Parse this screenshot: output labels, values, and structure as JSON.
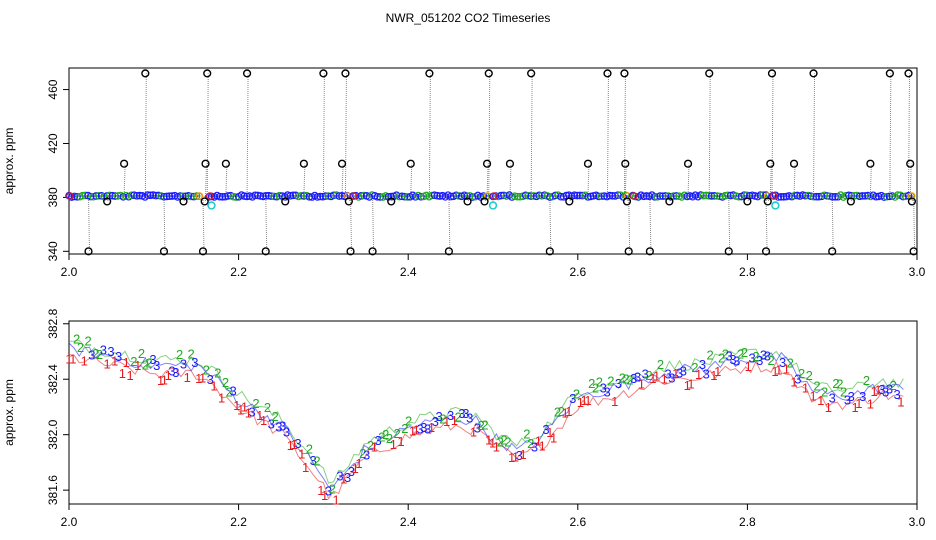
{
  "title": "NWR_051202  CO2 Timeseries",
  "chart_data": [
    {
      "type": "scatter",
      "ylabel": "approx. ppm",
      "xlim": [
        2.0,
        3.0
      ],
      "ylim": [
        338,
        476
      ],
      "xticks": [
        "2.0",
        "2.2",
        "2.4",
        "2.6",
        "2.8",
        "3.0"
      ],
      "yticks": [
        "340",
        "380",
        "420",
        "460"
      ],
      "baseline_ppm": 381,
      "segments": [
        [
          2.0,
          2.155
        ],
        [
          2.165,
          2.33
        ],
        [
          2.335,
          2.495
        ],
        [
          2.5,
          2.66
        ],
        [
          2.665,
          2.825
        ],
        [
          2.83,
          2.995
        ]
      ],
      "outliers": [
        {
          "x": 2.023,
          "y": 340
        },
        {
          "x": 2.045,
          "y": 377
        },
        {
          "x": 2.065,
          "y": 405
        },
        {
          "x": 2.09,
          "y": 472
        },
        {
          "x": 2.112,
          "y": 340
        },
        {
          "x": 2.135,
          "y": 377
        },
        {
          "x": 2.158,
          "y": 340
        },
        {
          "x": 2.16,
          "y": 377
        },
        {
          "x": 2.161,
          "y": 405
        },
        {
          "x": 2.163,
          "y": 472
        },
        {
          "x": 2.185,
          "y": 405
        },
        {
          "x": 2.21,
          "y": 472
        },
        {
          "x": 2.232,
          "y": 340
        },
        {
          "x": 2.255,
          "y": 377
        },
        {
          "x": 2.277,
          "y": 405
        },
        {
          "x": 2.3,
          "y": 472
        },
        {
          "x": 2.322,
          "y": 405
        },
        {
          "x": 2.326,
          "y": 472
        },
        {
          "x": 2.33,
          "y": 377
        },
        {
          "x": 2.332,
          "y": 340
        },
        {
          "x": 2.358,
          "y": 340
        },
        {
          "x": 2.38,
          "y": 377
        },
        {
          "x": 2.403,
          "y": 405
        },
        {
          "x": 2.425,
          "y": 472
        },
        {
          "x": 2.448,
          "y": 340
        },
        {
          "x": 2.47,
          "y": 377
        },
        {
          "x": 2.49,
          "y": 377
        },
        {
          "x": 2.493,
          "y": 405
        },
        {
          "x": 2.495,
          "y": 472
        },
        {
          "x": 2.52,
          "y": 405
        },
        {
          "x": 2.545,
          "y": 472
        },
        {
          "x": 2.567,
          "y": 340
        },
        {
          "x": 2.59,
          "y": 377
        },
        {
          "x": 2.612,
          "y": 405
        },
        {
          "x": 2.635,
          "y": 472
        },
        {
          "x": 2.655,
          "y": 472
        },
        {
          "x": 2.656,
          "y": 405
        },
        {
          "x": 2.658,
          "y": 377
        },
        {
          "x": 2.66,
          "y": 340
        },
        {
          "x": 2.685,
          "y": 340
        },
        {
          "x": 2.708,
          "y": 377
        },
        {
          "x": 2.73,
          "y": 405
        },
        {
          "x": 2.755,
          "y": 472
        },
        {
          "x": 2.778,
          "y": 340
        },
        {
          "x": 2.8,
          "y": 377
        },
        {
          "x": 2.822,
          "y": 340
        },
        {
          "x": 2.824,
          "y": 377
        },
        {
          "x": 2.827,
          "y": 405
        },
        {
          "x": 2.829,
          "y": 472
        },
        {
          "x": 2.855,
          "y": 405
        },
        {
          "x": 2.878,
          "y": 472
        },
        {
          "x": 2.9,
          "y": 340
        },
        {
          "x": 2.922,
          "y": 377
        },
        {
          "x": 2.945,
          "y": 405
        },
        {
          "x": 2.968,
          "y": 472
        },
        {
          "x": 2.99,
          "y": 472
        },
        {
          "x": 2.992,
          "y": 405
        },
        {
          "x": 2.994,
          "y": 377
        },
        {
          "x": 2.996,
          "y": 340
        }
      ],
      "cyan_points": [
        {
          "x": 2.168,
          "y": 374
        },
        {
          "x": 2.5,
          "y": 374
        },
        {
          "x": 2.833,
          "y": 374
        }
      ]
    },
    {
      "type": "line",
      "ylabel": "approx. ppm",
      "xlim": [
        2.0,
        3.0
      ],
      "ylim": [
        381.5,
        382.82
      ],
      "xticks": [
        "2.0",
        "2.2",
        "2.4",
        "2.6",
        "2.8",
        "3.0"
      ],
      "yticks": [
        "381.6",
        "382.0",
        "382.4",
        "382.8"
      ],
      "series_labels": [
        "1",
        "2",
        "3"
      ],
      "colors": {
        "1": "#e41a1c",
        "2": "#1faa1f",
        "3": "#1a1aff"
      },
      "trend": [
        {
          "x": 2.0,
          "y": 382.62
        },
        {
          "x": 2.05,
          "y": 382.56
        },
        {
          "x": 2.1,
          "y": 382.5
        },
        {
          "x": 2.15,
          "y": 382.5
        },
        {
          "x": 2.17,
          "y": 382.42
        },
        {
          "x": 2.2,
          "y": 382.25
        },
        {
          "x": 2.25,
          "y": 382.07
        },
        {
          "x": 2.28,
          "y": 381.85
        },
        {
          "x": 2.31,
          "y": 381.6
        },
        {
          "x": 2.35,
          "y": 381.9
        },
        {
          "x": 2.4,
          "y": 382.05
        },
        {
          "x": 2.45,
          "y": 382.12
        },
        {
          "x": 2.48,
          "y": 382.1
        },
        {
          "x": 2.5,
          "y": 381.98
        },
        {
          "x": 2.53,
          "y": 381.88
        },
        {
          "x": 2.56,
          "y": 382.0
        },
        {
          "x": 2.6,
          "y": 382.27
        },
        {
          "x": 2.65,
          "y": 382.35
        },
        {
          "x": 2.7,
          "y": 382.45
        },
        {
          "x": 2.75,
          "y": 382.48
        },
        {
          "x": 2.8,
          "y": 382.55
        },
        {
          "x": 2.84,
          "y": 382.55
        },
        {
          "x": 2.88,
          "y": 382.3
        },
        {
          "x": 2.92,
          "y": 382.28
        },
        {
          "x": 2.96,
          "y": 382.35
        },
        {
          "x": 2.985,
          "y": 382.32
        }
      ]
    }
  ]
}
